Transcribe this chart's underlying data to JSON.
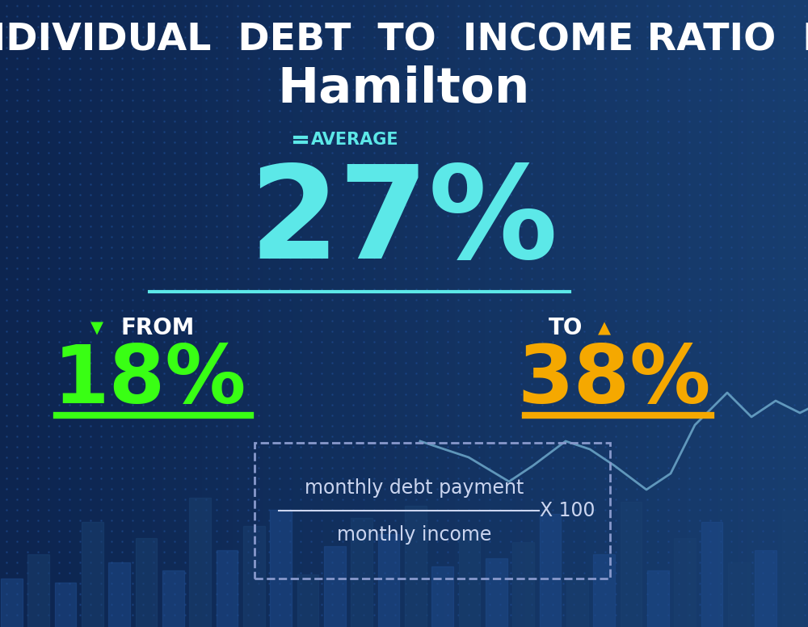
{
  "bg_color": "#0e2a5c",
  "bg_color_tl": "#0d2550",
  "bg_color_br": "#1a4a7a",
  "title_line1": "INDIVIDUAL  DEBT  TO  INCOME RATIO  IN",
  "title_line2": "Hamilton",
  "title_color": "#ffffff",
  "title1_fontsize": 34,
  "title2_fontsize": 44,
  "average_label": "  AVERAGE",
  "average_label_color": "#5ce8e8",
  "average_label_fontsize": 15,
  "average_value": "27%",
  "average_value_color": "#5ce8e8",
  "average_value_fontsize": 115,
  "average_line_color": "#5ce8e8",
  "from_label": "FROM",
  "from_arrow": "▼",
  "from_arrow_color": "#39ff14",
  "from_value": "18%",
  "from_value_color": "#39ff14",
  "from_fontsize": 72,
  "from_label_fontsize": 20,
  "from_line_color": "#39ff14",
  "to_label": "TO",
  "to_arrow": "▲",
  "to_arrow_color": "#f5a800",
  "to_value": "38%",
  "to_value_color": "#f5a800",
  "to_fontsize": 72,
  "to_label_fontsize": 20,
  "to_line_color": "#f5a800",
  "formula_numerator": "monthly debt payment",
  "formula_denominator": "monthly income",
  "formula_multiplier": "X 100",
  "formula_text_color": "#ccd6f0",
  "formula_border_color": "#8899cc",
  "formula_fontsize": 17,
  "bar_color_a": "#1e4a8a",
  "bar_color_b": "#1a4070",
  "line_chart_color": "#7ab8d8",
  "dot_color": "#1e4a90"
}
